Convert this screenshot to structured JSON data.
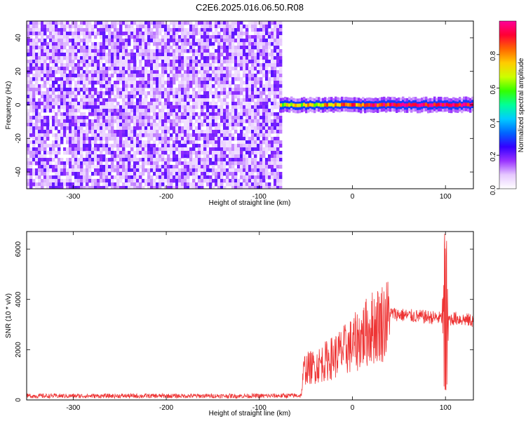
{
  "title": "C2E6.2025.016.06.50.R08",
  "chart_data": [
    {
      "type": "heatmap",
      "title": "C2E6.2025.016.06.50.R08",
      "xlabel": "Height of straight line (km)",
      "ylabel": "Frequency (Hz)",
      "xlim": [
        -350,
        130
      ],
      "ylim": [
        -50,
        50
      ],
      "x_ticks": [
        "-300",
        "-200",
        "-100",
        "0",
        "100"
      ],
      "y_ticks": [
        "-40",
        "-20",
        "0",
        "20",
        "40"
      ],
      "colorbar": {
        "label": "Normalized spectral amplitude",
        "range": [
          0,
          1
        ],
        "ticks": [
          "0.0",
          "0.2",
          "0.4",
          "0.6",
          "0.8"
        ],
        "colors": [
          "#ffffff",
          "#e6c8ff",
          "#9933ff",
          "#3300ff",
          "#0066ff",
          "#00ccff",
          "#00ff99",
          "#33ff00",
          "#ccff00",
          "#ffcc00",
          "#ff6600",
          "#ff0033",
          "#ff0099"
        ]
      },
      "regions": [
        {
          "name": "noise",
          "x_range": [
            -350,
            -78
          ],
          "freq_range": [
            -50,
            50
          ],
          "amplitude": 0.15
        },
        {
          "name": "signal band",
          "x_range": [
            -78,
            130
          ],
          "center_freq": 0,
          "bandwidth_hz": 4,
          "amplitude": 0.9
        }
      ],
      "grid": false
    },
    {
      "type": "line",
      "xlabel": "Height of straight line (km)",
      "ylabel": "SNR (10 * v/v)",
      "xlim": [
        -350,
        130
      ],
      "ylim": [
        0,
        6700
      ],
      "x_ticks": [
        "-300",
        "-200",
        "-100",
        "0",
        "100"
      ],
      "y_ticks": [
        "0",
        "2000",
        "4000",
        "6000"
      ],
      "series_color": "#ee3333",
      "envelope": {
        "x": [
          -350,
          -100,
          -55,
          -52,
          -40,
          -20,
          0,
          20,
          40,
          60,
          80,
          95,
          100,
          103,
          110,
          130
        ],
        "y": [
          200,
          200,
          220,
          1300,
          1400,
          1800,
          2300,
          3000,
          3450,
          3350,
          3300,
          3250,
          3300,
          3200,
          3250,
          3150
        ]
      },
      "spike": {
        "x": 100,
        "max": 6700,
        "min": 350
      },
      "grid": false
    }
  ]
}
